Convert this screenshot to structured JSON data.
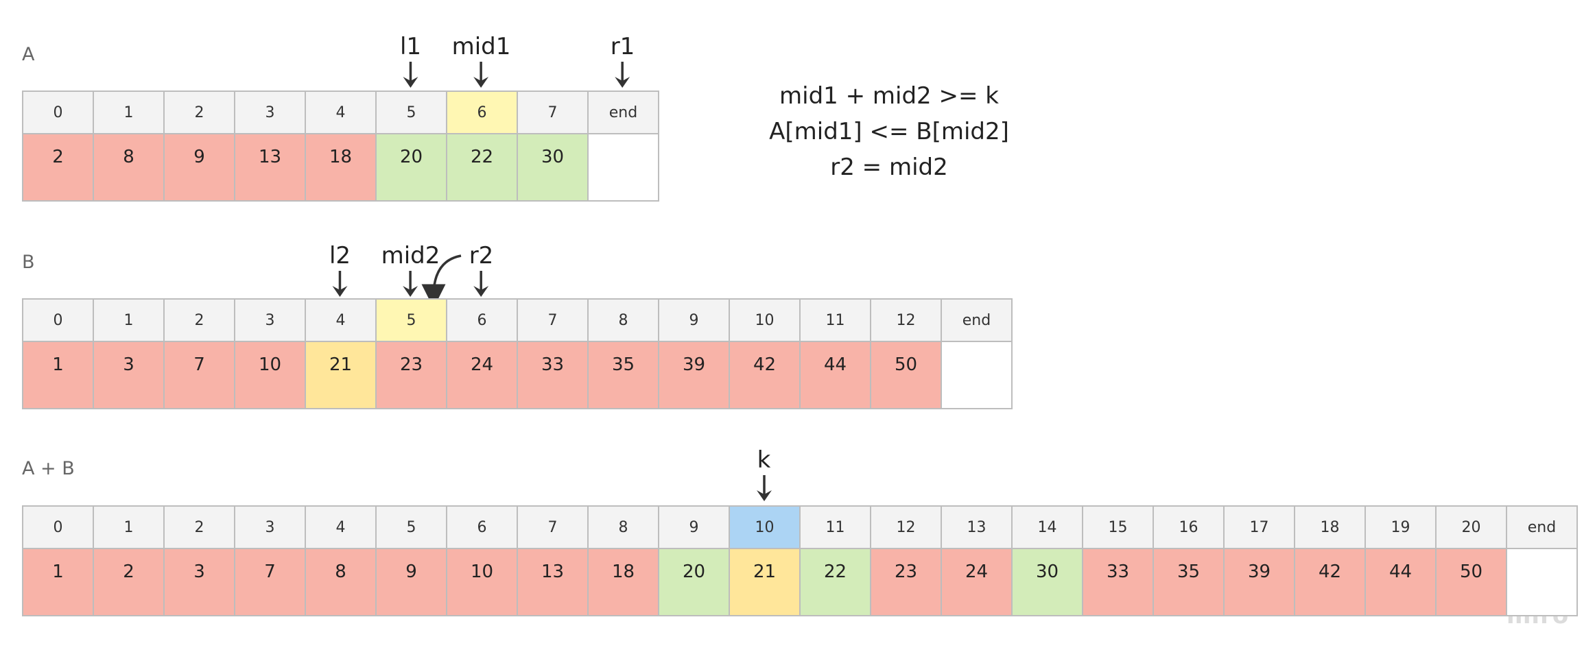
{
  "colors": {
    "red": "#f8b3a8",
    "green": "#d3ecb9",
    "yellow": "#fff7b3",
    "orange": "#ffe69a",
    "blue": "#acd4f4",
    "empty": "#ffffff",
    "header": "#f3f3f3"
  },
  "equation": {
    "line1": "mid1 + mid2 >= k",
    "line2": "A[mid1] <= B[mid2]",
    "line3": "r2 = mid2"
  },
  "logo": "miro",
  "arrays": [
    {
      "label": "A",
      "indices": [
        "0",
        "1",
        "2",
        "3",
        "4",
        "5",
        "6",
        "7",
        "end"
      ],
      "values": [
        "2",
        "8",
        "9",
        "13",
        "18",
        "20",
        "22",
        "30",
        ""
      ],
      "value_colors": [
        "red",
        "red",
        "red",
        "red",
        "red",
        "green",
        "green",
        "green",
        "empty"
      ],
      "index_colors": [
        "header",
        "header",
        "header",
        "header",
        "header",
        "header",
        "yellow",
        "header",
        "header"
      ],
      "pointers": [
        {
          "label": "l1",
          "index": 5
        },
        {
          "label": "mid1",
          "index": 6
        },
        {
          "label": "r1",
          "index": 8
        }
      ]
    },
    {
      "label": "B",
      "indices": [
        "0",
        "1",
        "2",
        "3",
        "4",
        "5",
        "6",
        "7",
        "8",
        "9",
        "10",
        "11",
        "12",
        "end"
      ],
      "values": [
        "1",
        "3",
        "7",
        "10",
        "21",
        "23",
        "24",
        "33",
        "35",
        "39",
        "42",
        "44",
        "50",
        ""
      ],
      "value_colors": [
        "red",
        "red",
        "red",
        "red",
        "orange",
        "red",
        "red",
        "red",
        "red",
        "red",
        "red",
        "red",
        "red",
        "empty"
      ],
      "index_colors": [
        "header",
        "header",
        "header",
        "header",
        "header",
        "yellow",
        "header",
        "header",
        "header",
        "header",
        "header",
        "header",
        "header",
        "header"
      ],
      "pointers": [
        {
          "label": "l2",
          "index": 4
        },
        {
          "label": "mid2",
          "index": 5
        },
        {
          "label": "r2",
          "index": 6
        }
      ]
    },
    {
      "label": "A + B",
      "indices": [
        "0",
        "1",
        "2",
        "3",
        "4",
        "5",
        "6",
        "7",
        "8",
        "9",
        "10",
        "11",
        "12",
        "13",
        "14",
        "15",
        "16",
        "17",
        "18",
        "19",
        "20",
        "end"
      ],
      "values": [
        "1",
        "2",
        "3",
        "7",
        "8",
        "9",
        "10",
        "13",
        "18",
        "20",
        "21",
        "22",
        "23",
        "24",
        "30",
        "33",
        "35",
        "39",
        "42",
        "44",
        "50",
        ""
      ],
      "value_colors": [
        "red",
        "red",
        "red",
        "red",
        "red",
        "red",
        "red",
        "red",
        "red",
        "green",
        "orange",
        "green",
        "red",
        "red",
        "green",
        "red",
        "red",
        "red",
        "red",
        "red",
        "red",
        "empty"
      ],
      "index_colors": [
        "header",
        "header",
        "header",
        "header",
        "header",
        "header",
        "header",
        "header",
        "header",
        "header",
        "blue",
        "header",
        "header",
        "header",
        "header",
        "header",
        "header",
        "header",
        "header",
        "header",
        "header",
        "header"
      ],
      "pointers": [
        {
          "label": "k",
          "index": 10
        }
      ]
    }
  ]
}
